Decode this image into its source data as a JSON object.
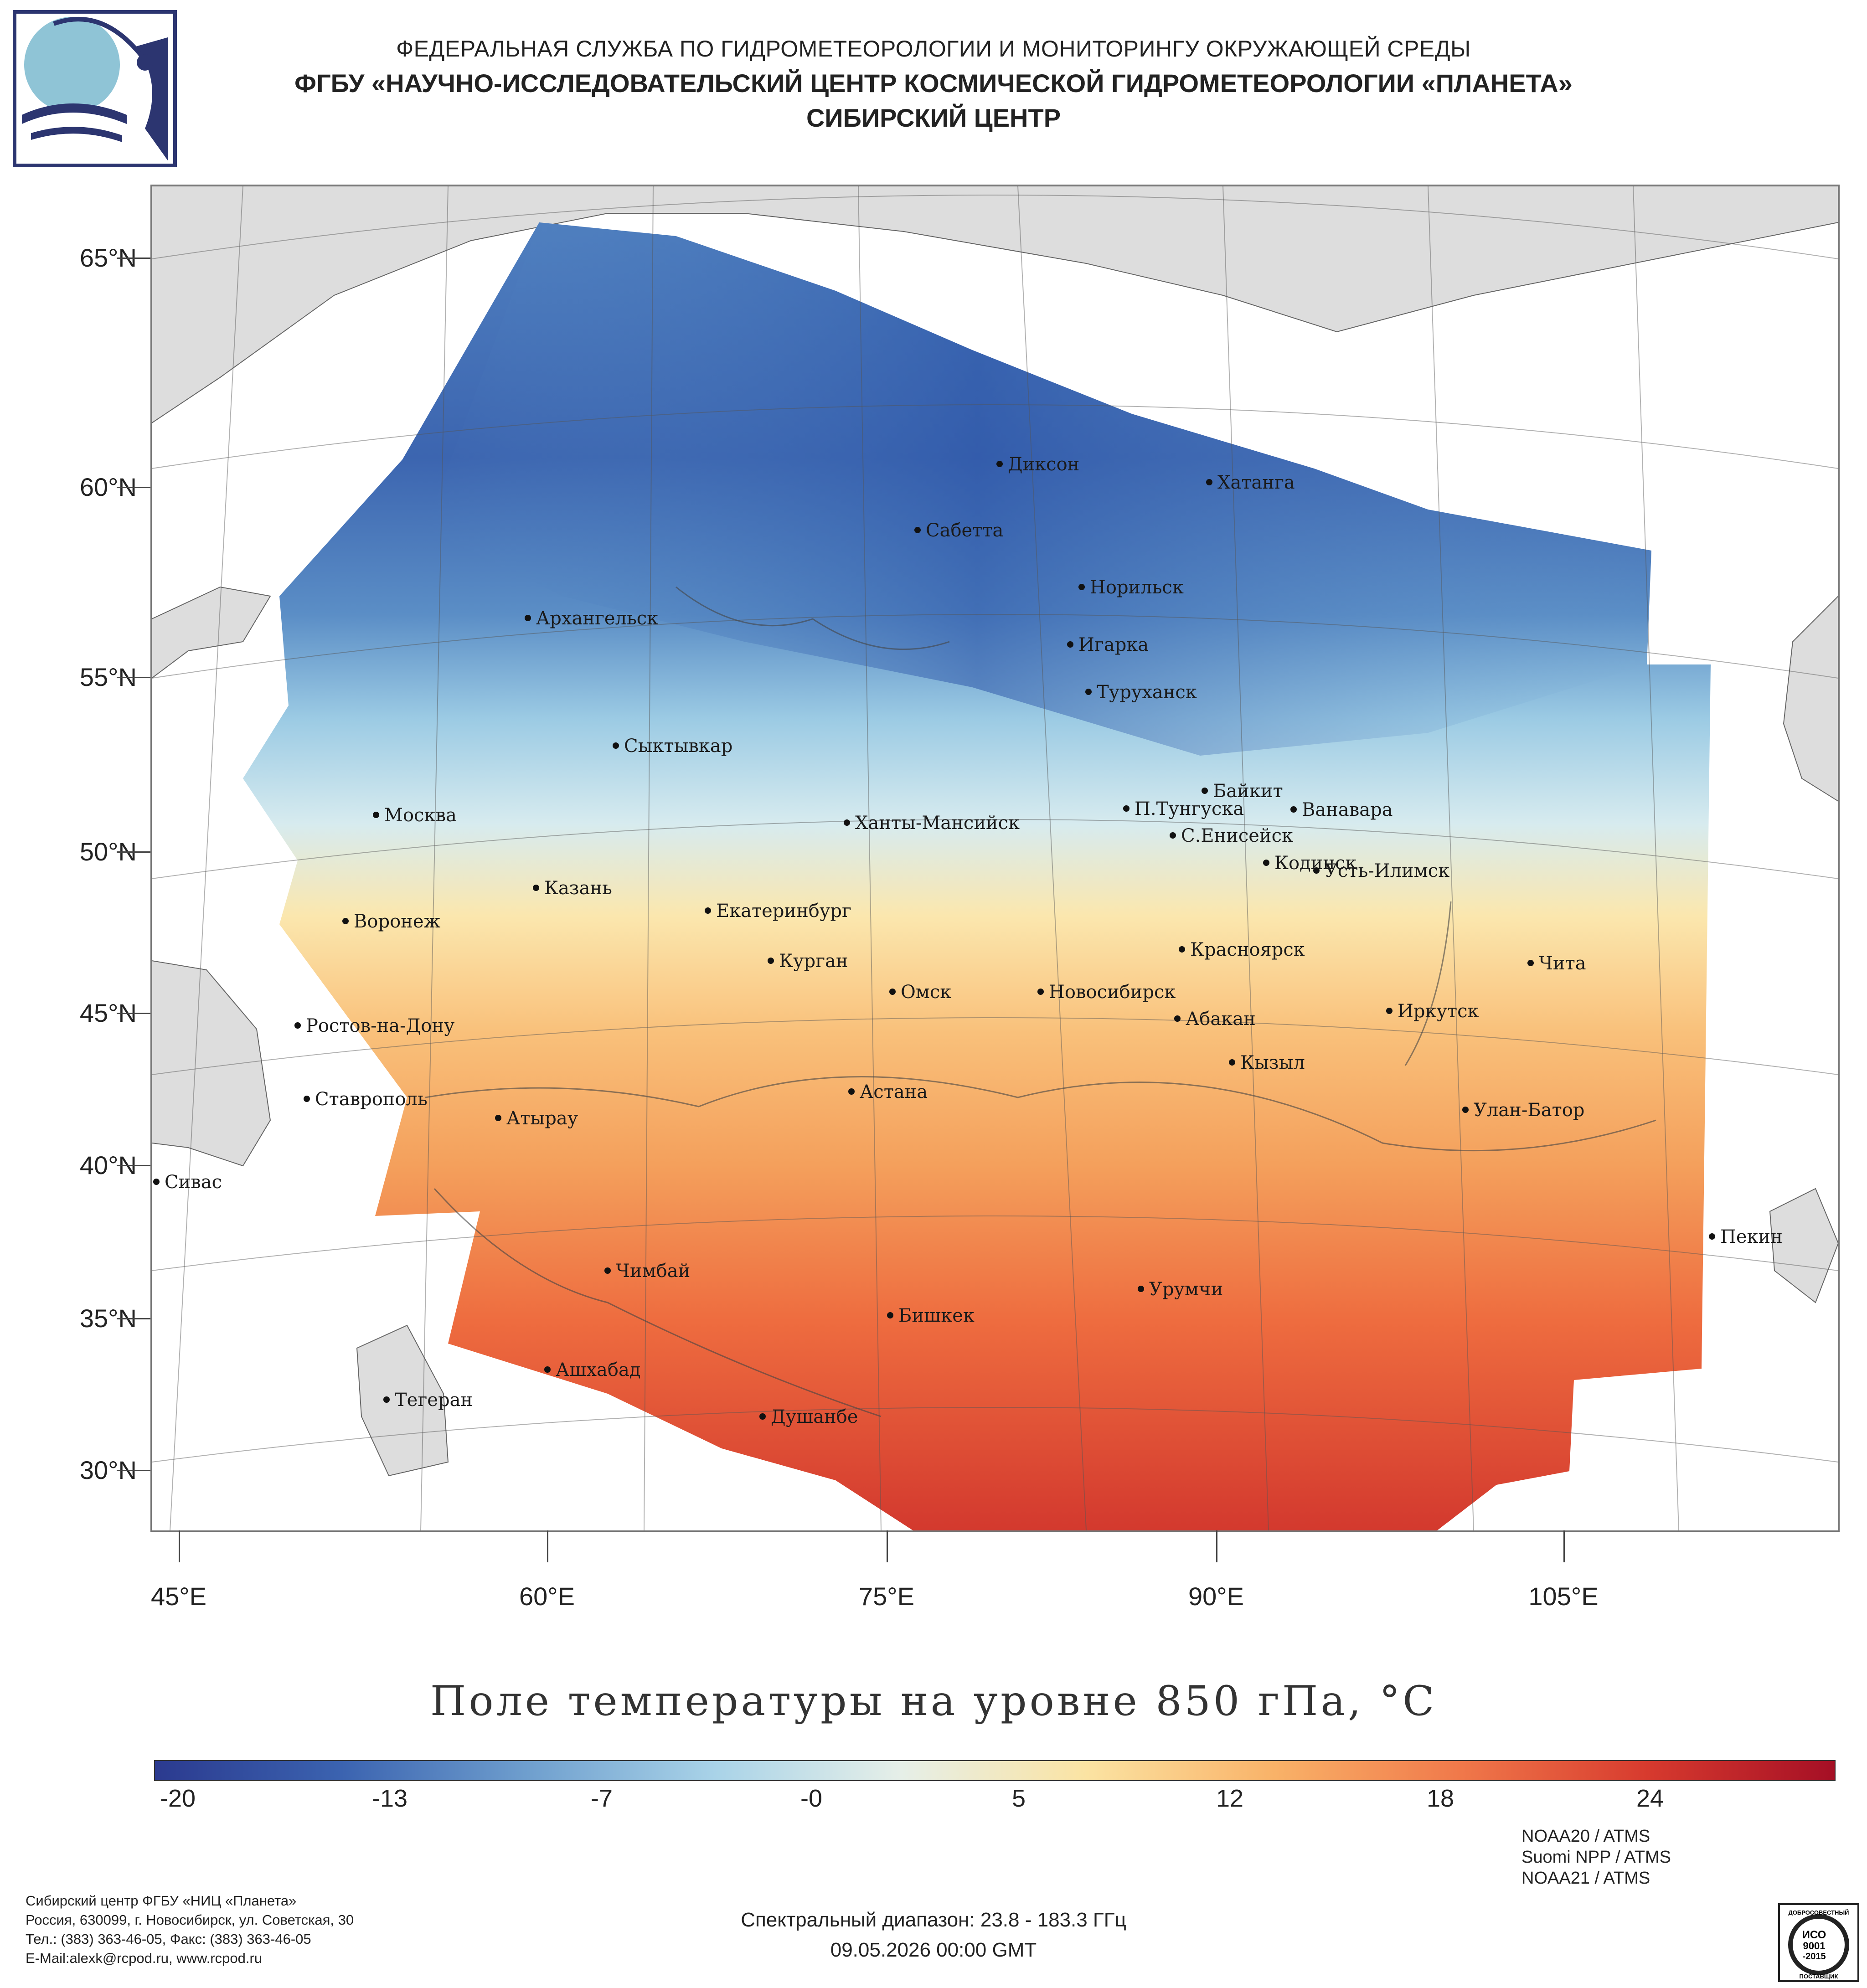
{
  "header": {
    "line1": "ФЕДЕРАЛЬНАЯ СЛУЖБА ПО ГИДРОМЕТЕОРОЛОГИИ И МОНИТОРИНГУ ОКРУЖАЮЩЕЙ СРЕДЫ",
    "line2": "ФГБУ «НАУЧНО-ИССЛЕДОВАТЕЛЬСКИЙ ЦЕНТР КОСМИЧЕСКОЙ ГИДРОМЕТЕОРОЛОГИИ «ПЛАНЕТА»",
    "line3": "СИБИРСКИЙ ЦЕНТР"
  },
  "map": {
    "lat_labels": [
      "65°N",
      "60°N",
      "55°N",
      "50°N",
      "45°N",
      "40°N",
      "35°N",
      "30°N"
    ],
    "lon_labels": [
      "45°E",
      "60°E",
      "75°E",
      "90°E",
      "105°E"
    ],
    "cities": [
      "Диксон",
      "Хатанга",
      "Сабетта",
      "Норильск",
      "Архангельск",
      "Игарка",
      "Туруханск",
      "Сыктывкар",
      "Байкит",
      "П.Тунгуска",
      "Ванавара",
      "Москва",
      "Ханты-Мансийск",
      "С.Енисейск",
      "Кодинск",
      "Усть-Илимск",
      "Казань",
      "Екатеринбург",
      "Воронеж",
      "Красноярск",
      "Курган",
      "Чита",
      "Омск",
      "Новосибирск",
      "Иркутск",
      "Абакан",
      "Ростов-на-Дону",
      "Кызыл",
      "Ставрополь",
      "Астана",
      "Улан-Батор",
      "Атырау",
      "Сивас",
      "Пекин",
      "Чимбай",
      "Урумчи",
      "Бишкек",
      "Ашхабад",
      "Тегеран",
      "Душанбе"
    ]
  },
  "title": "Поле температуры на уровне 850 гПа, °C",
  "colorbar": {
    "labels": [
      "-20",
      "-13",
      "-7",
      "-0",
      "5",
      "12",
      "18",
      "24"
    ],
    "colors": [
      "#2b3a8f",
      "#3b63b0",
      "#6f9fce",
      "#a9d3e8",
      "#e6efe8",
      "#fbe3a2",
      "#f9b268",
      "#f0784a",
      "#d73a2e",
      "#a50f25"
    ]
  },
  "footer": {
    "address": [
      "Сибирский центр ФГБУ «НИЦ «Планета»",
      "Россия, 630099, г. Новосибирск, ул. Советская, 30",
      "Тел.: (383) 363-46-05, Факс: (383) 363-46-05",
      "E-Mail:alexk@rcpod.ru, www.rcpod.ru"
    ],
    "spectral": "Спектральный диапазон: 23.8 - 183.3 ГГц",
    "datetime": "09.05.2026 00:00 GMT",
    "satellites": [
      "NOAA20 / ATMS",
      "Suomi NPP / ATMS",
      "NOAA21 / ATMS"
    ],
    "iso_badge": [
      "ДОБРОСОВЕСТНЫЙ",
      "ИСО",
      "9001",
      "-2015",
      "ПОСТАВЩИК"
    ]
  }
}
